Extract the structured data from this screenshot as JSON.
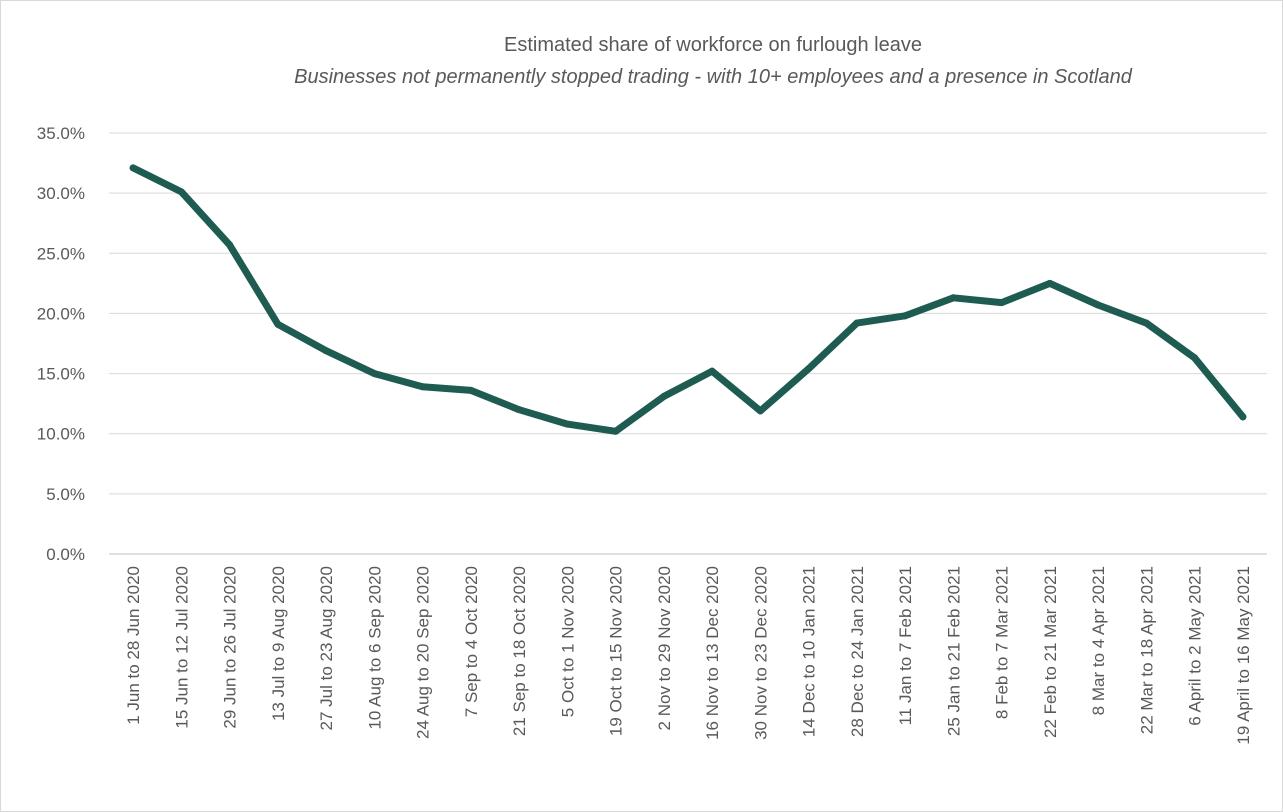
{
  "chart_data": {
    "type": "line",
    "title": "Estimated share of workforce on furlough leave",
    "subtitle": "Businesses not permanently stopped trading - with 10+ employees and a presence in Scotland",
    "xlabel": "",
    "ylabel": "",
    "ylim": [
      0,
      35
    ],
    "yticks": [
      "0.0%",
      "5.0%",
      "10.0%",
      "15.0%",
      "20.0%",
      "25.0%",
      "30.0%",
      "35.0%"
    ],
    "grid": true,
    "line_color": "#1e5c52",
    "categories": [
      "1 Jun to 28 Jun 2020",
      "15 Jun to 12 Jul 2020",
      "29 Jun to 26 Jul 2020",
      "13 Jul to 9 Aug 2020",
      "27 Jul to 23 Aug 2020",
      "10 Aug to 6 Sep 2020",
      "24 Aug to 20 Sep 2020",
      "7 Sep to 4 Oct 2020",
      "21 Sep to 18 Oct 2020",
      "5 Oct to 1 Nov 2020",
      "19 Oct to 15 Nov 2020",
      "2 Nov to 29 Nov 2020",
      "16 Nov to 13 Dec 2020",
      "30 Nov to 23 Dec 2020",
      "14 Dec to 10 Jan 2021",
      "28 Dec to 24 Jan 2021",
      "11 Jan to 7 Feb 2021",
      "25 Jan to 21 Feb 2021",
      "8 Feb to 7 Mar 2021",
      "22 Feb to 21 Mar 2021",
      "8 Mar to 4 Apr 2021",
      "22 Mar to 18 Apr 2021",
      "6 April to 2 May 2021",
      "19 April to 16 May 2021"
    ],
    "values": [
      32.1,
      30.1,
      25.7,
      19.1,
      16.9,
      15.0,
      13.9,
      13.6,
      12.0,
      10.8,
      10.2,
      13.1,
      15.2,
      11.9,
      15.4,
      19.2,
      19.8,
      21.3,
      20.9,
      22.5,
      20.7,
      19.2,
      16.3,
      11.4
    ]
  }
}
